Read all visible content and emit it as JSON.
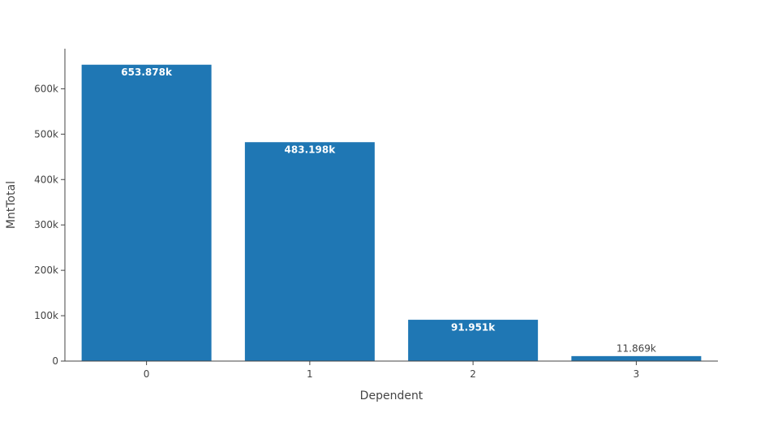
{
  "chart_data": {
    "type": "bar",
    "title": "",
    "xlabel": "Dependent",
    "ylabel": "MntTotal",
    "categories": [
      "0",
      "1",
      "2",
      "3"
    ],
    "values": [
      653878,
      483198,
      91951,
      11869
    ],
    "data_labels": [
      "653.878k",
      "483.198k",
      "91.951k",
      "11.869k"
    ],
    "ylim": [
      0,
      688292
    ],
    "yticks": [
      0,
      100000,
      200000,
      300000,
      400000,
      500000,
      600000
    ],
    "ytick_labels": [
      "0",
      "100k",
      "200k",
      "300k",
      "400k",
      "500k",
      "600k"
    ],
    "grid": false,
    "legend": "none",
    "bar_color": "#1f77b4",
    "bar_outline_color": "#ffffff"
  }
}
